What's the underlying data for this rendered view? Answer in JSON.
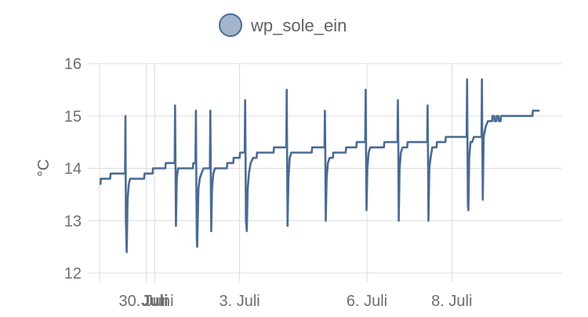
{
  "chart_data": {
    "type": "line",
    "title": "",
    "ylabel": "°C",
    "xlabel": "",
    "ylim": [
      12,
      16
    ],
    "yticks": [
      12,
      13,
      14,
      15,
      16
    ],
    "x_range_days": [
      -1.3,
      9.6
    ],
    "xticks": [
      {
        "label": "30. Juni",
        "day": -0.2,
        "bold": false
      },
      {
        "label": "Juli",
        "day": 0.0,
        "bold": true
      },
      {
        "label": "3. Juli",
        "day": 2.0,
        "bold": false
      },
      {
        "label": "6. Juli",
        "day": 5.0,
        "bold": false
      },
      {
        "label": "8. Juli",
        "day": 7.0,
        "bold": false
      }
    ],
    "grid": true,
    "legend": "top-center",
    "series": [
      {
        "name": "wp_sole_ein",
        "color": "#4a6b93",
        "legend_fill": "#a3b4cc",
        "points": [
          [
            -1.28,
            13.7
          ],
          [
            -1.27,
            13.8
          ],
          [
            -1.05,
            13.8
          ],
          [
            -1.04,
            13.9
          ],
          [
            -0.7,
            13.9
          ],
          [
            -0.69,
            15.0
          ],
          [
            -0.68,
            13.0
          ],
          [
            -0.66,
            12.4
          ],
          [
            -0.64,
            13.4
          ],
          [
            -0.61,
            13.7
          ],
          [
            -0.58,
            13.8
          ],
          [
            -0.25,
            13.8
          ],
          [
            -0.24,
            13.9
          ],
          [
            -0.05,
            13.9
          ],
          [
            -0.04,
            14.0
          ],
          [
            0.25,
            14.0
          ],
          [
            0.26,
            14.1
          ],
          [
            0.47,
            14.1
          ],
          [
            0.48,
            15.2
          ],
          [
            0.49,
            14.0
          ],
          [
            0.5,
            12.9
          ],
          [
            0.52,
            13.8
          ],
          [
            0.55,
            14.0
          ],
          [
            0.9,
            14.0
          ],
          [
            0.91,
            14.1
          ],
          [
            0.96,
            14.1
          ],
          [
            0.97,
            15.1
          ],
          [
            0.98,
            13.8
          ],
          [
            0.99,
            12.7
          ],
          [
            1.0,
            12.5
          ],
          [
            1.03,
            13.6
          ],
          [
            1.06,
            13.8
          ],
          [
            1.1,
            13.9
          ],
          [
            1.15,
            14.0
          ],
          [
            1.3,
            14.0
          ],
          [
            1.31,
            15.1
          ],
          [
            1.32,
            14.0
          ],
          [
            1.33,
            12.8
          ],
          [
            1.35,
            13.6
          ],
          [
            1.38,
            13.9
          ],
          [
            1.42,
            14.0
          ],
          [
            1.7,
            14.0
          ],
          [
            1.71,
            14.1
          ],
          [
            1.85,
            14.1
          ],
          [
            1.86,
            14.2
          ],
          [
            2.0,
            14.2
          ],
          [
            2.01,
            14.3
          ],
          [
            2.12,
            14.3
          ],
          [
            2.13,
            15.3
          ],
          [
            2.14,
            14.2
          ],
          [
            2.15,
            13.0
          ],
          [
            2.17,
            12.8
          ],
          [
            2.19,
            13.6
          ],
          [
            2.22,
            13.9
          ],
          [
            2.26,
            14.1
          ],
          [
            2.32,
            14.2
          ],
          [
            2.4,
            14.2
          ],
          [
            2.41,
            14.3
          ],
          [
            2.8,
            14.3
          ],
          [
            2.81,
            14.4
          ],
          [
            3.1,
            14.4
          ],
          [
            3.11,
            15.5
          ],
          [
            3.12,
            14.3
          ],
          [
            3.13,
            12.9
          ],
          [
            3.15,
            13.8
          ],
          [
            3.18,
            14.2
          ],
          [
            3.22,
            14.3
          ],
          [
            3.7,
            14.3
          ],
          [
            3.71,
            14.4
          ],
          [
            4.0,
            14.4
          ],
          [
            4.01,
            15.1
          ],
          [
            4.02,
            14.2
          ],
          [
            4.03,
            13.0
          ],
          [
            4.05,
            13.8
          ],
          [
            4.08,
            14.1
          ],
          [
            4.12,
            14.2
          ],
          [
            4.2,
            14.2
          ],
          [
            4.21,
            14.3
          ],
          [
            4.5,
            14.3
          ],
          [
            4.51,
            14.4
          ],
          [
            4.75,
            14.4
          ],
          [
            4.76,
            14.5
          ],
          [
            4.96,
            14.5
          ],
          [
            4.97,
            15.5
          ],
          [
            4.98,
            14.3
          ],
          [
            4.99,
            13.2
          ],
          [
            5.01,
            14.0
          ],
          [
            5.04,
            14.3
          ],
          [
            5.08,
            14.4
          ],
          [
            5.4,
            14.4
          ],
          [
            5.41,
            14.5
          ],
          [
            5.72,
            14.5
          ],
          [
            5.73,
            15.3
          ],
          [
            5.74,
            14.3
          ],
          [
            5.75,
            13.0
          ],
          [
            5.77,
            14.0
          ],
          [
            5.8,
            14.3
          ],
          [
            5.84,
            14.4
          ],
          [
            5.95,
            14.4
          ],
          [
            5.96,
            14.5
          ],
          [
            6.42,
            14.5
          ],
          [
            6.43,
            15.2
          ],
          [
            6.44,
            14.2
          ],
          [
            6.45,
            13.0
          ],
          [
            6.47,
            14.0
          ],
          [
            6.5,
            14.2
          ],
          [
            6.54,
            14.4
          ],
          [
            6.64,
            14.4
          ],
          [
            6.65,
            14.5
          ],
          [
            6.85,
            14.5
          ],
          [
            6.86,
            14.6
          ],
          [
            7.35,
            14.6
          ],
          [
            7.36,
            15.7
          ],
          [
            7.37,
            14.4
          ],
          [
            7.38,
            13.3
          ],
          [
            7.39,
            13.2
          ],
          [
            7.41,
            14.2
          ],
          [
            7.44,
            14.5
          ],
          [
            7.48,
            14.5
          ],
          [
            7.52,
            14.6
          ],
          [
            7.7,
            14.6
          ],
          [
            7.71,
            15.7
          ],
          [
            7.72,
            14.5
          ],
          [
            7.73,
            13.4
          ],
          [
            7.75,
            14.6
          ],
          [
            7.8,
            14.8
          ],
          [
            7.85,
            14.9
          ],
          [
            7.95,
            14.9
          ],
          [
            7.96,
            15.0
          ],
          [
            8.0,
            15.0
          ],
          [
            8.01,
            14.9
          ],
          [
            8.05,
            14.9
          ],
          [
            8.06,
            15.0
          ],
          [
            8.1,
            15.0
          ],
          [
            8.11,
            14.9
          ],
          [
            8.15,
            14.9
          ],
          [
            8.16,
            15.0
          ],
          [
            8.9,
            15.0
          ],
          [
            8.91,
            15.1
          ],
          [
            9.05,
            15.1
          ]
        ]
      }
    ]
  }
}
